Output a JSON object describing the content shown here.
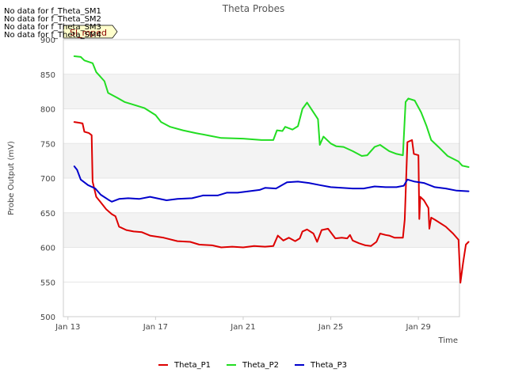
{
  "chart_data": {
    "type": "line",
    "title": "Theta Probes",
    "xlabel": "Time",
    "ylabel": "Probe Output (mV)",
    "xlim": [
      "2014-01-12T19:00",
      "2014-01-30T21:00"
    ],
    "ylim": [
      500,
      900
    ],
    "x_ticks": [
      {
        "date": "2014-01-13T00:00",
        "label": "Jan 13"
      },
      {
        "date": "2014-01-17T00:00",
        "label": "Jan 17"
      },
      {
        "date": "2014-01-21T00:00",
        "label": "Jan 21"
      },
      {
        "date": "2014-01-25T00:00",
        "label": "Jan 25"
      },
      {
        "date": "2014-01-29T00:00",
        "label": "Jan 29"
      }
    ],
    "y_ticks": [
      500,
      550,
      600,
      650,
      700,
      750,
      800,
      850,
      900
    ],
    "bands": [
      [
        600,
        650
      ],
      [
        700,
        750
      ],
      [
        800,
        850
      ]
    ],
    "no_data_messages": [
      "No data for f_Theta_SM1",
      "No data for f_Theta_SM2",
      "No data for f_Theta_SM3",
      "No data for f_Theta_SM4"
    ],
    "flag": "Sl_mped",
    "legend_position": "bottom",
    "series": [
      {
        "name": "Theta_P1",
        "color": "#dd0000",
        "points": [
          [
            "2014-01-13T07:00",
            781
          ],
          [
            "2014-01-13T12:00",
            780
          ],
          [
            "2014-01-13T16:00",
            779
          ],
          [
            "2014-01-13T18:00",
            767
          ],
          [
            "2014-01-13T23:00",
            765
          ],
          [
            "2014-01-14T02:00",
            762
          ],
          [
            "2014-01-14T03:00",
            695
          ],
          [
            "2014-01-14T07:00",
            673
          ],
          [
            "2014-01-14T12:00",
            665
          ],
          [
            "2014-01-14T18:00",
            655
          ],
          [
            "2014-01-15T00:00",
            648
          ],
          [
            "2014-01-15T04:00",
            645
          ],
          [
            "2014-01-15T08:00",
            630
          ],
          [
            "2014-01-15T16:00",
            625
          ],
          [
            "2014-01-16T00:00",
            623
          ],
          [
            "2014-01-16T09:00",
            622
          ],
          [
            "2014-01-16T18:00",
            617
          ],
          [
            "2014-01-17T09:00",
            614
          ],
          [
            "2014-01-18T00:00",
            609
          ],
          [
            "2014-01-18T14:00",
            608
          ],
          [
            "2014-01-19T00:00",
            604
          ],
          [
            "2014-01-19T14:00",
            603
          ],
          [
            "2014-01-20T00:00",
            600
          ],
          [
            "2014-01-20T12:00",
            601
          ],
          [
            "2014-01-21T00:00",
            600
          ],
          [
            "2014-01-21T12:00",
            602
          ],
          [
            "2014-01-22T00:00",
            601
          ],
          [
            "2014-01-22T09:00",
            602
          ],
          [
            "2014-01-22T14:00",
            617
          ],
          [
            "2014-01-22T20:00",
            610
          ],
          [
            "2014-01-23T02:00",
            614
          ],
          [
            "2014-01-23T09:00",
            609
          ],
          [
            "2014-01-23T14:00",
            613
          ],
          [
            "2014-01-23T17:00",
            623
          ],
          [
            "2014-01-23T22:00",
            626
          ],
          [
            "2014-01-24T05:00",
            620
          ],
          [
            "2014-01-24T09:00",
            608
          ],
          [
            "2014-01-24T14:00",
            625
          ],
          [
            "2014-01-24T21:00",
            627
          ],
          [
            "2014-01-25T05:00",
            613
          ],
          [
            "2014-01-25T12:00",
            614
          ],
          [
            "2014-01-25T18:00",
            613
          ],
          [
            "2014-01-25T21:00",
            618
          ],
          [
            "2014-01-26T00:00",
            610
          ],
          [
            "2014-01-26T07:00",
            606
          ],
          [
            "2014-01-26T14:00",
            603
          ],
          [
            "2014-01-26T20:00",
            602
          ],
          [
            "2014-01-27T02:00",
            608
          ],
          [
            "2014-01-27T06:00",
            620
          ],
          [
            "2014-01-27T12:00",
            618
          ],
          [
            "2014-01-27T16:00",
            617
          ],
          [
            "2014-01-27T22:00",
            614
          ],
          [
            "2014-01-28T07:00",
            614
          ],
          [
            "2014-01-28T09:00",
            640
          ],
          [
            "2014-01-28T12:00",
            752
          ],
          [
            "2014-01-28T17:00",
            755
          ],
          [
            "2014-01-28T19:00",
            735
          ],
          [
            "2014-01-29T00:00",
            733
          ],
          [
            "2014-01-29T01:00",
            641
          ],
          [
            "2014-01-29T02:00",
            673
          ],
          [
            "2014-01-29T06:00",
            668
          ],
          [
            "2014-01-29T11:00",
            657
          ],
          [
            "2014-01-29T12:00",
            627
          ],
          [
            "2014-01-29T14:00",
            643
          ],
          [
            "2014-01-29T18:00",
            640
          ],
          [
            "2014-01-30T06:00",
            630
          ],
          [
            "2014-01-30T14:00",
            620
          ],
          [
            "2014-01-30T20:00",
            611
          ],
          [
            "2014-01-30T22:00",
            549
          ],
          [
            "2014-01-31T01:00",
            578
          ],
          [
            "2014-01-31T04:00",
            604
          ],
          [
            "2014-01-31T07:00",
            608
          ]
        ]
      },
      {
        "name": "Theta_P2",
        "color": "#22dd22",
        "points": [
          [
            "2014-01-13T07:00",
            876
          ],
          [
            "2014-01-13T14:00",
            875
          ],
          [
            "2014-01-13T18:00",
            870
          ],
          [
            "2014-01-14T03:00",
            866
          ],
          [
            "2014-01-14T07:00",
            853
          ],
          [
            "2014-01-14T16:00",
            840
          ],
          [
            "2014-01-14T20:00",
            823
          ],
          [
            "2014-01-15T06:00",
            816
          ],
          [
            "2014-01-15T14:00",
            810
          ],
          [
            "2014-01-16T00:00",
            806
          ],
          [
            "2014-01-16T12:00",
            801
          ],
          [
            "2014-01-17T00:00",
            791
          ],
          [
            "2014-01-17T06:00",
            781
          ],
          [
            "2014-01-17T16:00",
            774
          ],
          [
            "2014-01-18T06:00",
            769
          ],
          [
            "2014-01-18T20:00",
            765
          ],
          [
            "2014-01-19T12:00",
            761
          ],
          [
            "2014-01-20T00:00",
            758
          ],
          [
            "2014-01-21T00:00",
            757
          ],
          [
            "2014-01-21T20:00",
            755
          ],
          [
            "2014-01-22T09:00",
            755
          ],
          [
            "2014-01-22T13:00",
            769
          ],
          [
            "2014-01-22T19:00",
            768
          ],
          [
            "2014-01-22T22:00",
            774
          ],
          [
            "2014-01-23T06:00",
            770
          ],
          [
            "2014-01-23T12:00",
            775
          ],
          [
            "2014-01-23T17:00",
            800
          ],
          [
            "2014-01-23T22:00",
            809
          ],
          [
            "2014-01-24T06:00",
            793
          ],
          [
            "2014-01-24T10:00",
            785
          ],
          [
            "2014-01-24T12:00",
            748
          ],
          [
            "2014-01-24T16:00",
            760
          ],
          [
            "2014-01-25T00:00",
            750
          ],
          [
            "2014-01-25T06:00",
            746
          ],
          [
            "2014-01-25T14:00",
            745
          ],
          [
            "2014-01-26T00:00",
            739
          ],
          [
            "2014-01-26T10:00",
            732
          ],
          [
            "2014-01-26T16:00",
            733
          ],
          [
            "2014-01-27T00:00",
            745
          ],
          [
            "2014-01-27T06:00",
            748
          ],
          [
            "2014-01-27T16:00",
            739
          ],
          [
            "2014-01-28T00:00",
            735
          ],
          [
            "2014-01-28T07:00",
            733
          ],
          [
            "2014-01-28T10:00",
            810
          ],
          [
            "2014-01-28T13:00",
            815
          ],
          [
            "2014-01-28T20:00",
            812
          ],
          [
            "2014-01-29T03:00",
            795
          ],
          [
            "2014-01-29T09:00",
            775
          ],
          [
            "2014-01-29T14:00",
            755
          ],
          [
            "2014-01-29T22:00",
            745
          ],
          [
            "2014-01-30T08:00",
            732
          ],
          [
            "2014-01-30T20:00",
            724
          ],
          [
            "2014-01-31T00:00",
            718
          ],
          [
            "2014-01-31T07:00",
            716
          ]
        ]
      },
      {
        "name": "Theta_P3",
        "color": "#0000cc",
        "points": [
          [
            "2014-01-13T07:00",
            717
          ],
          [
            "2014-01-13T10:00",
            712
          ],
          [
            "2014-01-13T14:00",
            698
          ],
          [
            "2014-01-13T22:00",
            690
          ],
          [
            "2014-01-14T06:00",
            685
          ],
          [
            "2014-01-14T12:00",
            676
          ],
          [
            "2014-01-14T20:00",
            669
          ],
          [
            "2014-01-15T00:00",
            666
          ],
          [
            "2014-01-15T08:00",
            670
          ],
          [
            "2014-01-15T18:00",
            671
          ],
          [
            "2014-01-16T06:00",
            670
          ],
          [
            "2014-01-16T18:00",
            673
          ],
          [
            "2014-01-17T12:00",
            668
          ],
          [
            "2014-01-18T00:00",
            670
          ],
          [
            "2014-01-18T16:00",
            671
          ],
          [
            "2014-01-19T04:00",
            675
          ],
          [
            "2014-01-19T20:00",
            675
          ],
          [
            "2014-01-20T06:00",
            679
          ],
          [
            "2014-01-20T18:00",
            679
          ],
          [
            "2014-01-21T06:00",
            681
          ],
          [
            "2014-01-21T18:00",
            683
          ],
          [
            "2014-01-22T00:00",
            686
          ],
          [
            "2014-01-22T12:00",
            685
          ],
          [
            "2014-01-23T00:00",
            694
          ],
          [
            "2014-01-23T12:00",
            695
          ],
          [
            "2014-01-24T00:00",
            693
          ],
          [
            "2014-01-24T12:00",
            690
          ],
          [
            "2014-01-25T00:00",
            687
          ],
          [
            "2014-01-25T12:00",
            686
          ],
          [
            "2014-01-26T00:00",
            685
          ],
          [
            "2014-01-26T12:00",
            685
          ],
          [
            "2014-01-27T00:00",
            688
          ],
          [
            "2014-01-27T12:00",
            687
          ],
          [
            "2014-01-28T00:00",
            687
          ],
          [
            "2014-01-28T08:00",
            689
          ],
          [
            "2014-01-28T12:00",
            698
          ],
          [
            "2014-01-28T20:00",
            695
          ],
          [
            "2014-01-29T06:00",
            693
          ],
          [
            "2014-01-29T18:00",
            687
          ],
          [
            "2014-01-30T06:00",
            685
          ],
          [
            "2014-01-30T18:00",
            682
          ],
          [
            "2014-01-31T07:00",
            681
          ]
        ]
      }
    ]
  }
}
